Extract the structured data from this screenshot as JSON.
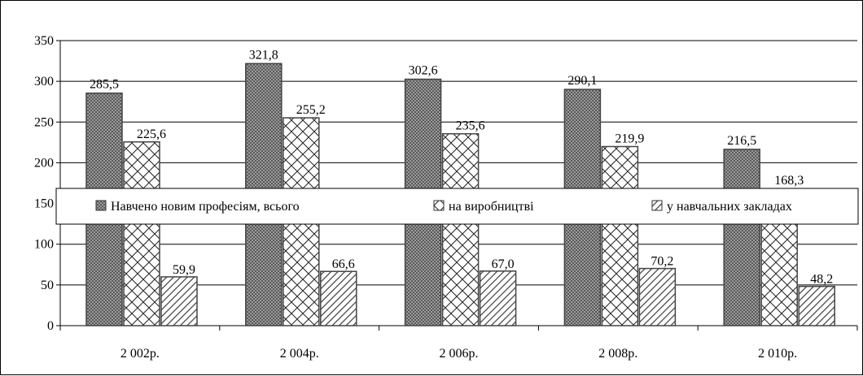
{
  "chart_data": {
    "type": "bar",
    "categories": [
      "2 002р.",
      "2 004р.",
      "2 006р.",
      "2 008р.",
      "2 010р."
    ],
    "series": [
      {
        "name": "Навчено новим професіям, всього",
        "values": [
          285.5,
          321.8,
          302.6,
          290.1,
          216.5
        ],
        "labels": [
          "285,5",
          "321,8",
          "302,6",
          "290,1",
          "216,5"
        ],
        "pattern": "checker"
      },
      {
        "name": "на виробництві",
        "values": [
          225.6,
          255.2,
          235.6,
          219.9,
          168.3
        ],
        "labels": [
          "225,6",
          "255,2",
          "235,6",
          "219,9",
          "168,3"
        ],
        "pattern": "crosshatch"
      },
      {
        "name": "у навчальних закладах",
        "values": [
          59.9,
          66.6,
          67.0,
          70.2,
          48.2
        ],
        "labels": [
          "59,9",
          "66,6",
          "67,0",
          "70,2",
          "48,2"
        ],
        "pattern": "diagonal"
      }
    ],
    "yticks": [
      "0",
      "50",
      "100",
      "150",
      "200",
      "250",
      "300",
      "350"
    ],
    "ylim": [
      0,
      350
    ],
    "grid": true,
    "legend_position": "middle, overlapping bars"
  }
}
